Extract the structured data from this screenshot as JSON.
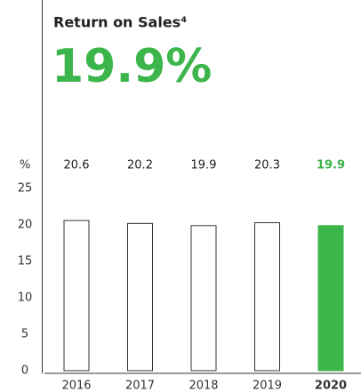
{
  "chart_data": {
    "type": "bar",
    "title": "Return on Sales⁴",
    "headline": "19.9%",
    "y_unit": "%",
    "categories": [
      "2016",
      "2017",
      "2018",
      "2019",
      "2020"
    ],
    "values": [
      20.6,
      20.2,
      19.9,
      20.3,
      19.9
    ],
    "colors": [
      "#ffffff",
      "#ffffff",
      "#ffffff",
      "#ffffff",
      "#3cb54a"
    ],
    "label_colors": [
      "#222222",
      "#222222",
      "#222222",
      "#222222",
      "#3cb54a"
    ],
    "bar_outline": "#333333",
    "headline_color": "#3cb54a",
    "ylim": [
      0,
      25
    ],
    "yticks": [
      0,
      5,
      10,
      15,
      20,
      25
    ],
    "grid": false
  }
}
